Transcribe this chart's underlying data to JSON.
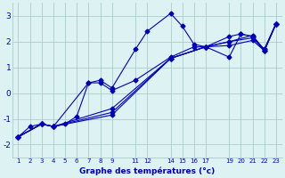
{
  "xlabel": "Graphe des températures (°c)",
  "background_color": "#ddf2f2",
  "grid_color": "#aacccc",
  "line_color": "#0000bb",
  "series": [
    {
      "x": [
        1,
        2,
        3,
        4,
        5,
        6,
        7,
        8,
        9,
        11,
        12,
        14,
        15,
        16,
        17,
        19,
        20,
        21,
        22,
        23
      ],
      "y": [
        -1.7,
        -1.3,
        -1.2,
        -1.3,
        -1.2,
        -0.9,
        0.4,
        0.5,
        0.2,
        1.7,
        2.4,
        3.1,
        2.6,
        1.9,
        1.8,
        1.4,
        2.3,
        2.2,
        1.7,
        2.7
      ]
    },
    {
      "x": [
        1,
        3,
        4,
        7,
        8,
        9,
        11,
        14,
        16,
        17,
        19,
        20,
        21,
        22,
        23
      ],
      "y": [
        -1.7,
        -1.2,
        -1.3,
        0.4,
        0.4,
        0.1,
        0.5,
        1.4,
        1.8,
        1.8,
        2.2,
        2.3,
        2.2,
        1.7,
        2.7
      ]
    },
    {
      "x": [
        1,
        3,
        4,
        9,
        14,
        17,
        19,
        21,
        22,
        23
      ],
      "y": [
        -1.7,
        -1.2,
        -1.3,
        -0.6,
        1.35,
        1.8,
        2.0,
        2.25,
        1.65,
        2.7
      ]
    },
    {
      "x": [
        1,
        3,
        4,
        9,
        14,
        17,
        19,
        21,
        22,
        23
      ],
      "y": [
        -1.7,
        -1.2,
        -1.3,
        -0.75,
        1.35,
        1.8,
        2.0,
        2.15,
        1.65,
        2.7
      ]
    },
    {
      "x": [
        1,
        3,
        4,
        9,
        14,
        17,
        19,
        21,
        22,
        23
      ],
      "y": [
        -1.7,
        -1.2,
        -1.3,
        -0.85,
        1.35,
        1.8,
        1.85,
        2.05,
        1.65,
        2.7
      ]
    }
  ],
  "xlim": [
    0.5,
    23.5
  ],
  "ylim": [
    -2.5,
    3.5
  ],
  "yticks": [
    -2,
    -1,
    0,
    1,
    2,
    3
  ],
  "ytick_labels": [
    "-2",
    "-1",
    "0",
    "1",
    "2",
    "3"
  ],
  "xtick_positions": [
    1,
    2,
    3,
    4,
    5,
    6,
    7,
    8,
    9,
    11,
    12,
    14,
    15,
    16,
    17,
    19,
    20,
    21,
    22,
    23
  ],
  "xtick_labels": [
    "1",
    "2",
    "3",
    "4",
    "5",
    "6",
    "7",
    "8",
    "9",
    "11",
    "12",
    "14",
    "15",
    "16",
    "17",
    "19",
    "20",
    "21",
    "22",
    "23"
  ],
  "marker": "D",
  "markersize": 2.5,
  "linewidth": 0.8,
  "tick_fontsize": 5.0,
  "xlabel_fontsize": 6.5,
  "ylabel_fontsize": 6.5
}
